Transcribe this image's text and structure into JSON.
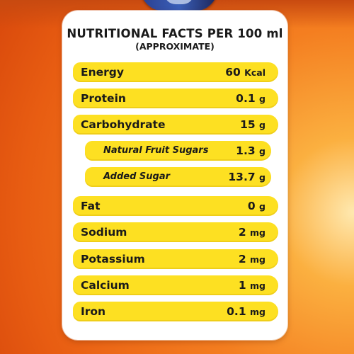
{
  "header": {
    "title": "NUTRITIONAL FACTS PER 100 ml",
    "subtitle": "(APPROXIMATE)"
  },
  "rows": [
    {
      "label": "Energy",
      "amount": "60",
      "unit": "Kcal",
      "kind": "main"
    },
    {
      "label": "Protein",
      "amount": "0.1",
      "unit": "g",
      "kind": "main"
    },
    {
      "label": "Carbohydrate",
      "amount": "15",
      "unit": "g",
      "kind": "main"
    },
    {
      "label": "Natural Fruit Sugars",
      "amount": "1.3",
      "unit": "g",
      "kind": "sub"
    },
    {
      "label": "Added Sugar",
      "amount": "13.7",
      "unit": "g",
      "kind": "sub"
    },
    {
      "label": "Fat",
      "amount": "0",
      "unit": "g",
      "kind": "main"
    },
    {
      "label": "Sodium",
      "amount": "2",
      "unit": "mg",
      "kind": "main"
    },
    {
      "label": "Potassium",
      "amount": "2",
      "unit": "mg",
      "kind": "main"
    },
    {
      "label": "Calcium",
      "amount": "1",
      "unit": "mg",
      "kind": "main"
    },
    {
      "label": "Iron",
      "amount": "0.1",
      "unit": "mg",
      "kind": "main"
    }
  ],
  "colors": {
    "row_fill": "#fde022",
    "panel": "#ffffff",
    "background": "#f47e20"
  }
}
